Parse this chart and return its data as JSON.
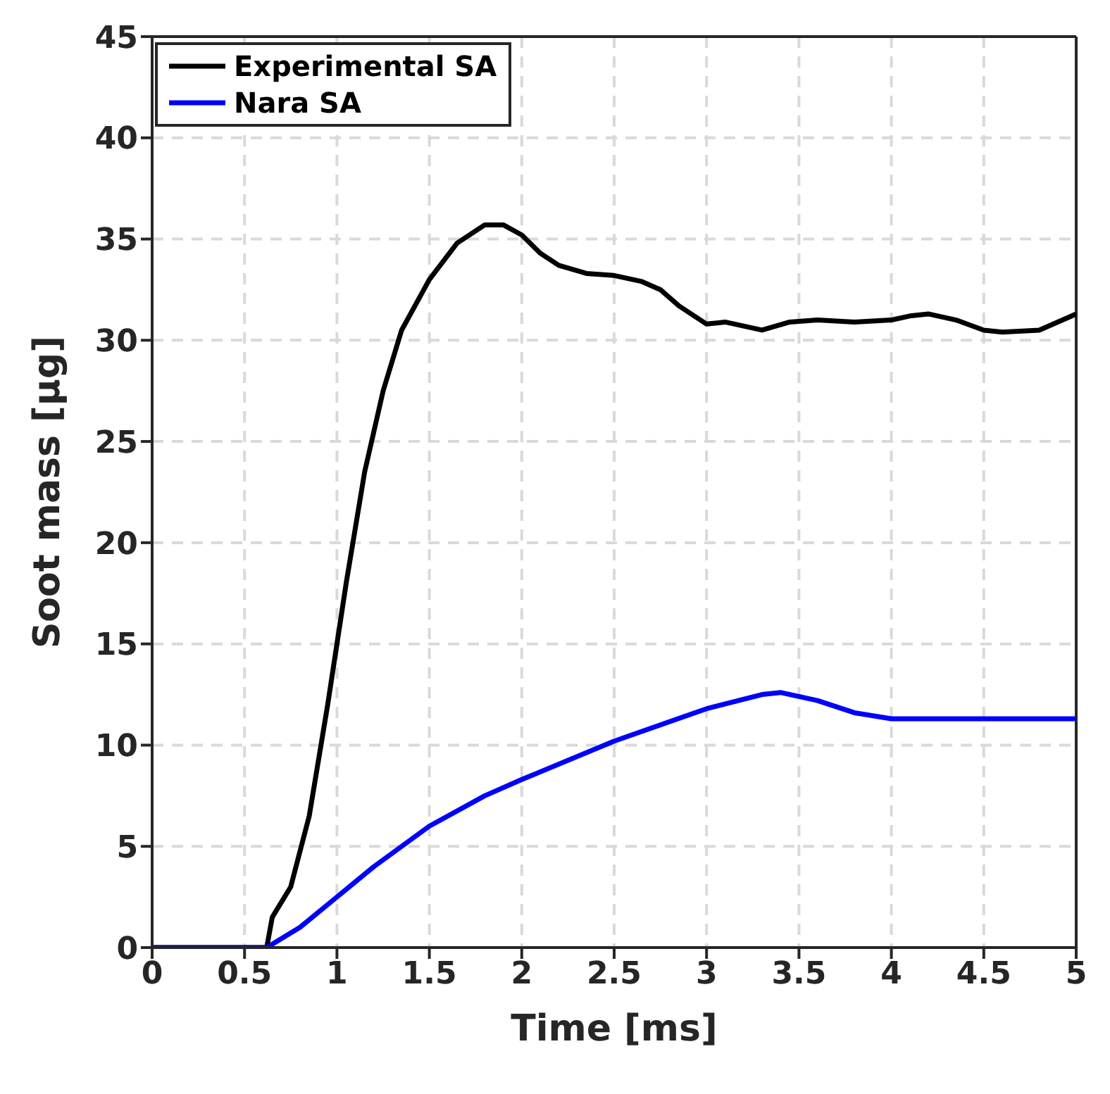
{
  "chart_data": {
    "type": "line",
    "xlabel": "Time [ms]",
    "ylabel": "Soot mass [μg]",
    "xlim": [
      0,
      5
    ],
    "xticks": [
      0,
      0.5,
      1,
      1.5,
      2,
      2.5,
      3,
      3.5,
      4,
      4.5,
      5
    ],
    "ylim": [
      0,
      45
    ],
    "yticks": [
      0,
      5,
      10,
      15,
      20,
      25,
      30,
      35,
      40,
      45
    ],
    "grid": true,
    "legend": "top left",
    "marker": "none",
    "line_style": "solid",
    "series": [
      {
        "name": "Experimental SA",
        "color": "#000000",
        "x": [
          0,
          0.3,
          0.62,
          0.65,
          0.75,
          0.85,
          0.95,
          1.05,
          1.15,
          1.25,
          1.35,
          1.5,
          1.65,
          1.8,
          1.9,
          2.0,
          2.1,
          2.2,
          2.35,
          2.5,
          2.65,
          2.75,
          2.85,
          3.0,
          3.1,
          3.2,
          3.3,
          3.45,
          3.6,
          3.8,
          4.0,
          4.1,
          4.2,
          4.35,
          4.5,
          4.6,
          4.8,
          5.0
        ],
        "values": [
          0,
          0,
          0,
          1.5,
          3,
          6.5,
          12,
          18,
          23.5,
          27.5,
          30.5,
          33,
          34.8,
          35.7,
          35.7,
          35.2,
          34.3,
          33.7,
          33.3,
          33.2,
          32.9,
          32.5,
          31.7,
          30.8,
          30.9,
          30.7,
          30.5,
          30.9,
          31,
          30.9,
          31,
          31.2,
          31.3,
          31,
          30.5,
          30.4,
          30.5,
          31.3
        ]
      },
      {
        "name": "Nara SA",
        "color": "#0000ff",
        "x": [
          0,
          0.3,
          0.62,
          0.8,
          1.0,
          1.2,
          1.5,
          1.8,
          2.0,
          2.5,
          3.0,
          3.3,
          3.4,
          3.6,
          3.8,
          4.0,
          4.1,
          4.5,
          5.0
        ],
        "values": [
          0,
          0,
          0,
          1,
          2.5,
          4,
          6,
          7.5,
          8.3,
          10.2,
          11.8,
          12.5,
          12.6,
          12.2,
          11.6,
          11.3,
          11.3,
          11.3,
          11.3
        ]
      }
    ]
  }
}
